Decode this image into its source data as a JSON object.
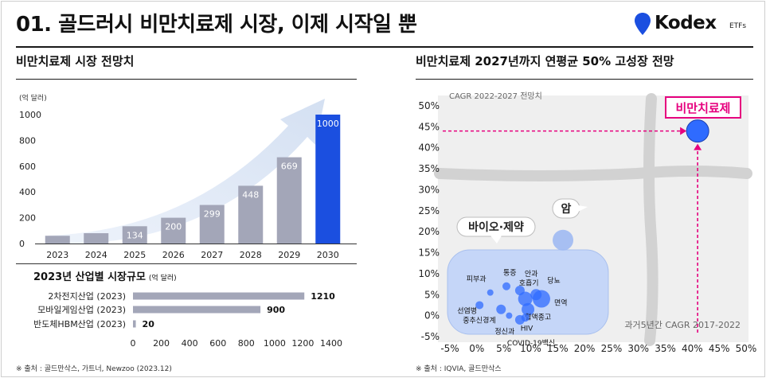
{
  "header": {
    "title": "01. 골드러시 비만치료제 시장, 이제 시작일 뿐",
    "logo_text": "Kodex",
    "logo_sub": "ETFs"
  },
  "left_panel": {
    "section_title": "비만치료제 시장 전망치",
    "footnote": "※ 출처 : 골드만삭스, 가트너, Newzoo (2023.12)"
  },
  "right_panel": {
    "section_title": "비만치료제 2027년까지 연평균 50% 고성장 전망",
    "footnote": "※ 출처 : IQVIA, 골드만삭스"
  },
  "colors": {
    "bar_gray": "#a3a6b8",
    "bar_highlight": "#1b4fe0",
    "bubble_blue": "#2f6bff",
    "bubble_area": "#c5d6f8",
    "magenta": "#e6007e",
    "cross_band": "#d2d2d2"
  },
  "chart_data": [
    {
      "type": "bar",
      "title": "비만치료제 시장 전망치",
      "ylabel": "(억 달러)",
      "categories": [
        "2023",
        "2024",
        "2025",
        "2026",
        "2027",
        "2028",
        "2029",
        "2030"
      ],
      "values": [
        60,
        80,
        134,
        200,
        299,
        448,
        669,
        1000
      ],
      "value_labels": [
        "",
        "",
        "134",
        "200",
        "299",
        "448",
        "669",
        "1000"
      ],
      "highlight": "2030",
      "yticks": [
        "0",
        "200",
        "400",
        "600",
        "800",
        "1000"
      ],
      "ylim": [
        0,
        1000
      ]
    },
    {
      "type": "bar",
      "orientation": "horizontal",
      "title": "2023년 산업별 시장규모",
      "unit": "(억 달러)",
      "categories": [
        "2차전지산업 (2023)",
        "모바일게임산업 (2023)",
        "반도체HBM산업 (2023)"
      ],
      "values": [
        1210,
        900,
        20
      ],
      "value_labels": [
        "1210",
        "900",
        "20"
      ],
      "xticks": [
        "0",
        "200",
        "400",
        "600",
        "800",
        "1000",
        "1200",
        "1400"
      ],
      "xlim": [
        0,
        1400
      ]
    },
    {
      "type": "scatter",
      "title": "비만치료제 2027년까지 연평균 50% 고성장 전망",
      "xlabel": "과거5년간 CAGR 2017-2022",
      "ylabel": "CAGR 2022-2027 전망치",
      "xticks": [
        "-5%",
        "0%",
        "5%",
        "10%",
        "15%",
        "20%",
        "25%",
        "30%",
        "35%",
        "40%",
        "45%",
        "50%"
      ],
      "yticks": [
        "-5%",
        "0%",
        "5%",
        "10%",
        "15%",
        "20%",
        "25%",
        "30%",
        "35%",
        "40%",
        "45%",
        "50%"
      ],
      "xlim": [
        -5,
        50
      ],
      "ylim": [
        -5,
        50
      ],
      "group_label": "바이오·제약",
      "cancer_label": "암",
      "highlight_label": "비만치료제",
      "highlight_point": {
        "x": 41,
        "y": 44
      },
      "cancer_point": {
        "x": 16,
        "y": 18
      },
      "points": [
        {
          "label": "피부과",
          "x": 2.5,
          "y": 5.5
        },
        {
          "label": "통증",
          "x": 5.5,
          "y": 7
        },
        {
          "label": "안과",
          "x": 8,
          "y": 6
        },
        {
          "label": "호흡기",
          "x": 9,
          "y": 4
        },
        {
          "label": "당뇨",
          "x": 11,
          "y": 5
        },
        {
          "label": "면역",
          "x": 12,
          "y": 4
        },
        {
          "label": "선염병",
          "x": 0.5,
          "y": 2.5
        },
        {
          "label": "혈액종고",
          "x": 9.5,
          "y": 1.5
        },
        {
          "label": "중추신경계",
          "x": 4.5,
          "y": 1.5
        },
        {
          "label": "HIV",
          "x": 9,
          "y": -0.5
        },
        {
          "label": "정신과",
          "x": 6,
          "y": 0
        },
        {
          "label": "COVID-19백신",
          "x": 8,
          "y": -1
        }
      ]
    }
  ]
}
